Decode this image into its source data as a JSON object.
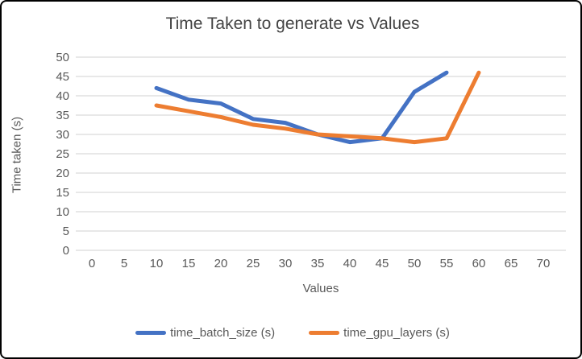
{
  "chart_data": {
    "type": "line",
    "title": "Time Taken to generate vs Values",
    "xlabel": "Values",
    "ylabel": "Time taken (s)",
    "x_ticks": [
      0,
      5,
      10,
      15,
      20,
      25,
      30,
      35,
      40,
      45,
      50,
      55,
      60,
      65,
      70
    ],
    "y_ticks": [
      0,
      5,
      10,
      15,
      20,
      25,
      30,
      35,
      40,
      45,
      50
    ],
    "xlim": [
      0,
      70
    ],
    "ylim": [
      0,
      50
    ],
    "grid": "horizontal-only",
    "gridline_color": "#D9D9D9",
    "axis_text_color": "#595959",
    "title_color": "#444444",
    "legend_position": "bottom",
    "series": [
      {
        "name": "time_batch_size (s)",
        "color": "#4472C4",
        "x": [
          10,
          15,
          20,
          25,
          30,
          35,
          40,
          45,
          50,
          55
        ],
        "values": [
          42,
          39,
          38,
          34,
          33,
          30,
          28,
          29,
          41,
          46
        ]
      },
      {
        "name": "time_gpu_layers (s)",
        "color": "#ED7D31",
        "x": [
          10,
          15,
          20,
          25,
          30,
          35,
          40,
          45,
          50,
          55,
          60
        ],
        "values": [
          37.5,
          36,
          34.5,
          32.5,
          31.5,
          30,
          29.5,
          29,
          28,
          29,
          46
        ]
      }
    ]
  }
}
